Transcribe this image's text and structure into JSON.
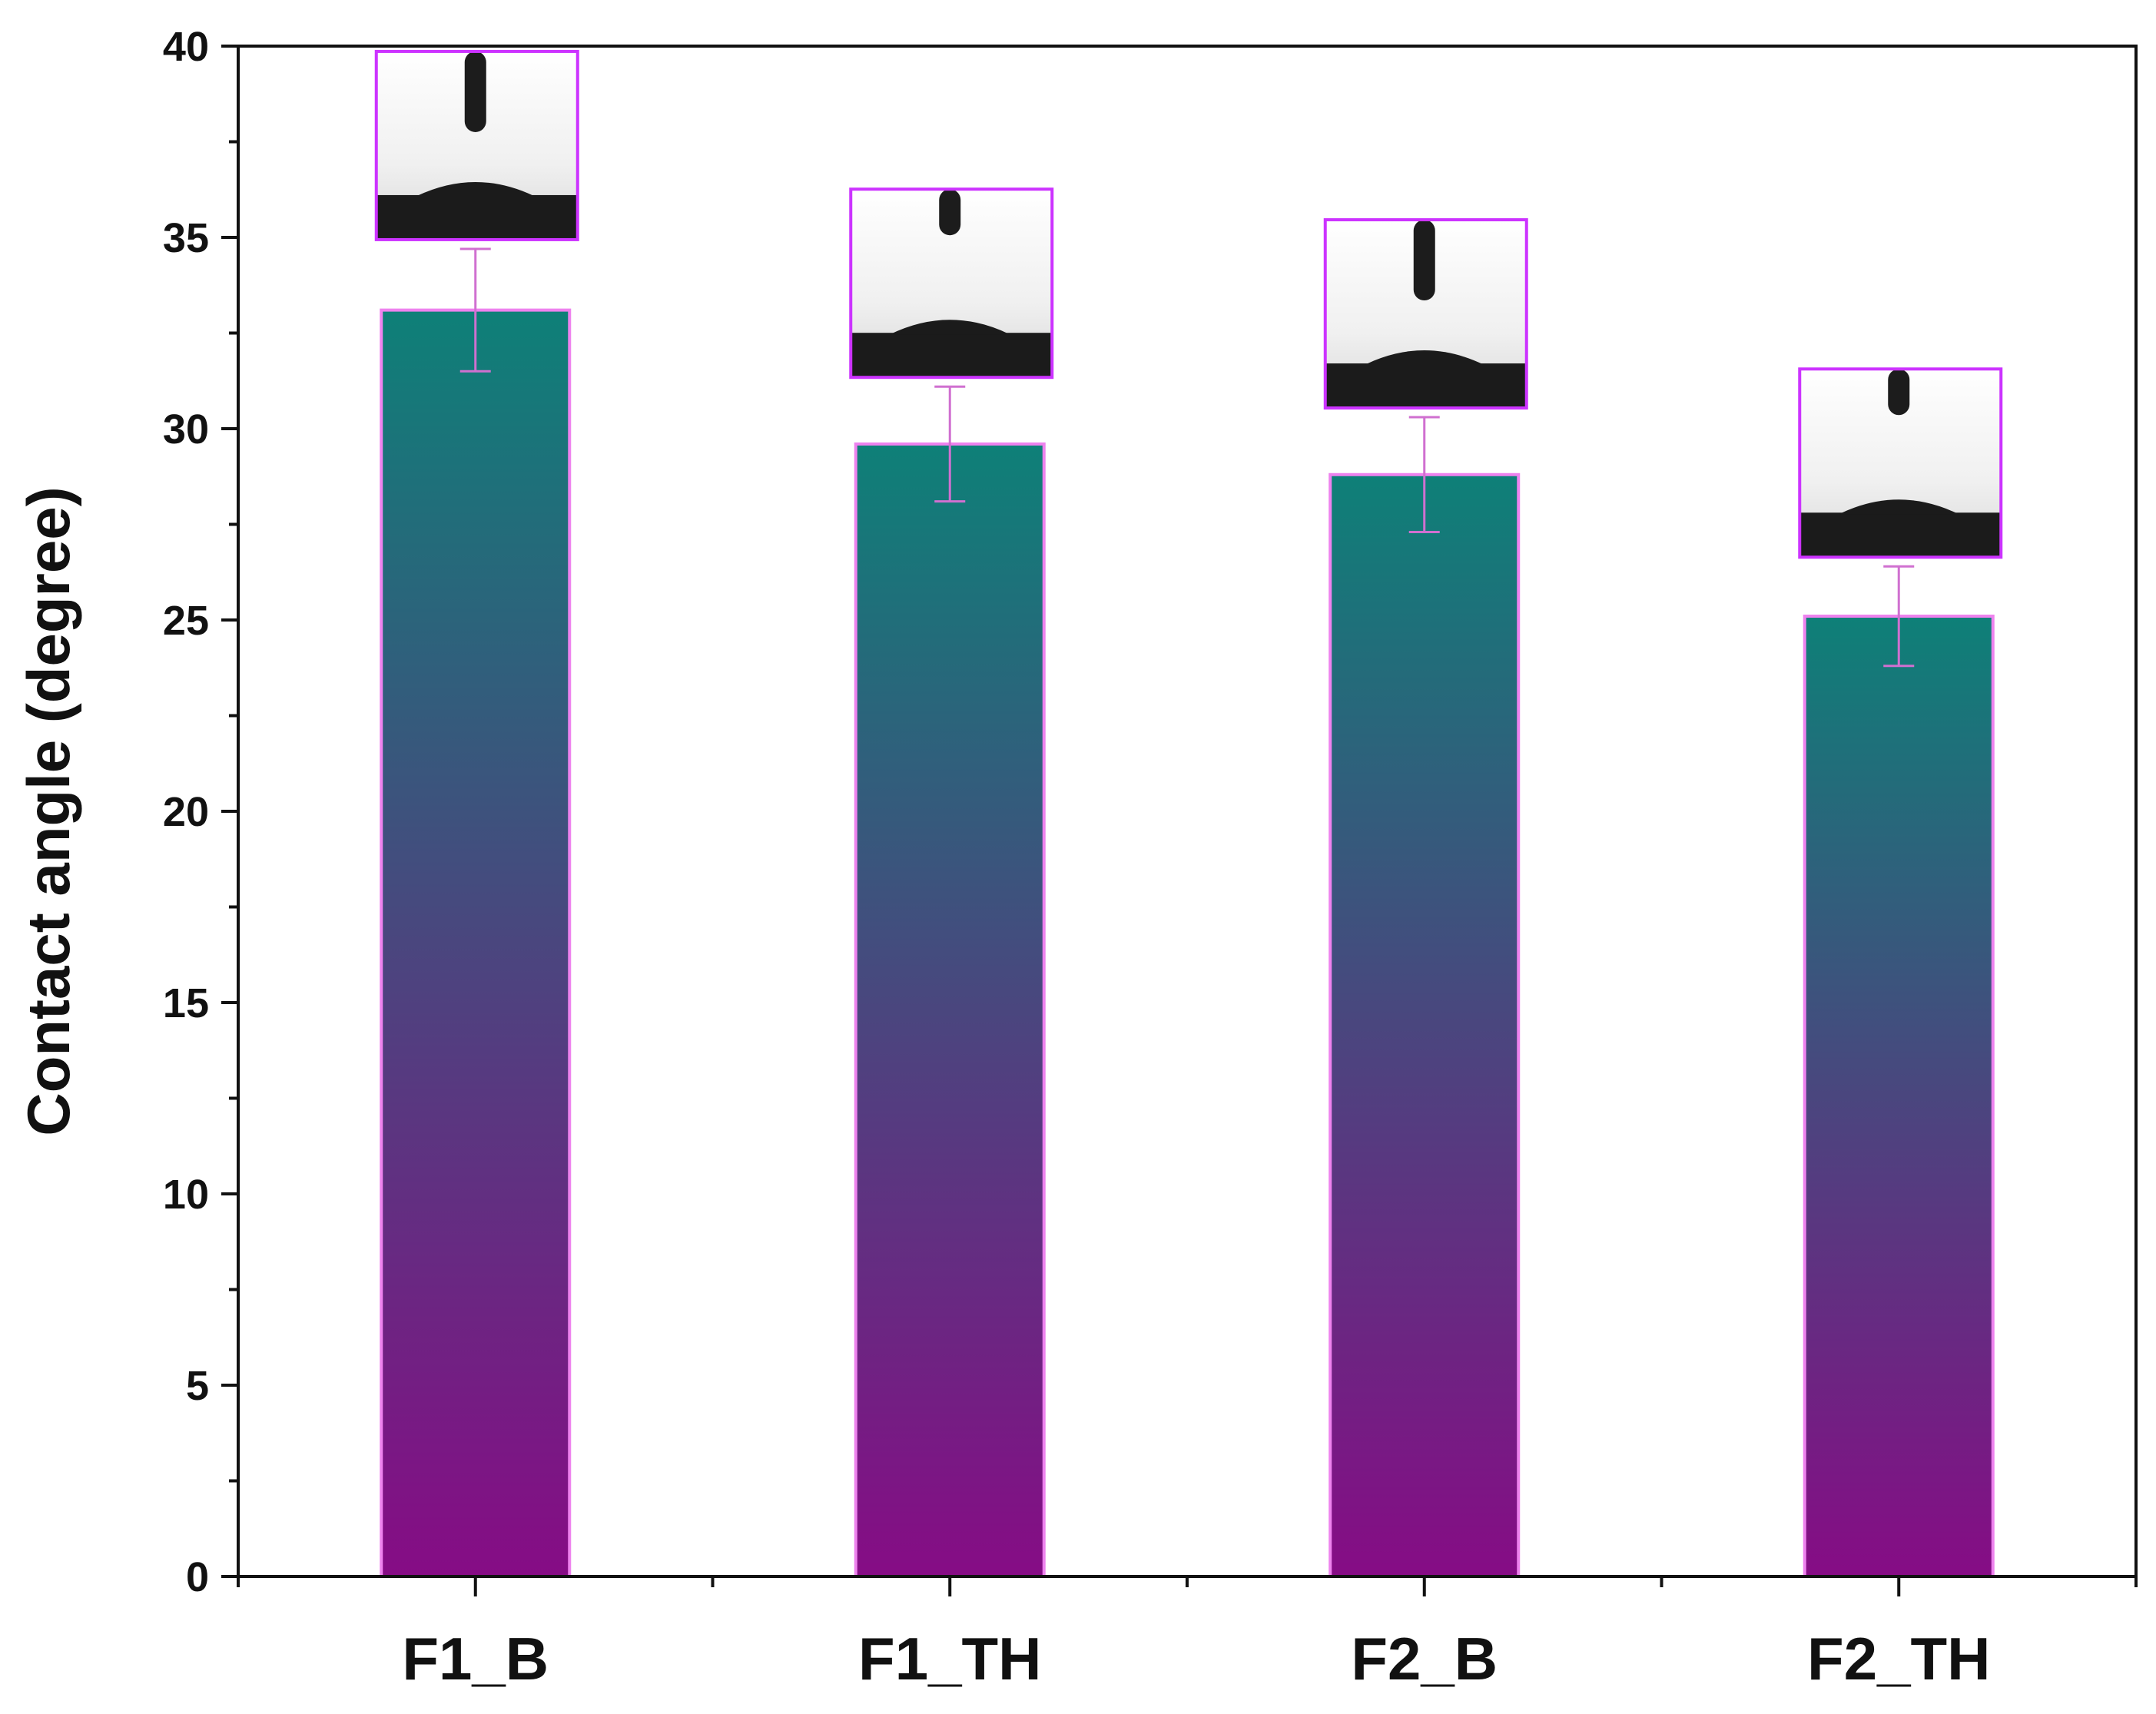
{
  "chart_data": {
    "type": "bar",
    "title": "",
    "xlabel": "",
    "ylabel": "Contact angle (degree)",
    "ylim": [
      0,
      40
    ],
    "yticks": [
      0,
      5,
      10,
      15,
      20,
      25,
      30,
      35,
      40
    ],
    "ytick_labels": [
      "0",
      "5",
      "10",
      "15",
      "20",
      "25",
      "30",
      "35",
      "40"
    ],
    "categories": [
      "F1_B",
      "F1_TH",
      "F2_B",
      "F2_TH"
    ],
    "values": [
      33.1,
      29.6,
      28.8,
      25.1
    ],
    "errors": [
      1.6,
      1.5,
      1.5,
      1.3
    ],
    "grid": false,
    "legend": "none",
    "insets": "droplet photo above each bar",
    "colors": {
      "bar_top": "#0e8078",
      "bar_bottom": "#860c85",
      "bar_edge": "#ee82ee",
      "error_bar": "#d070d0",
      "inset_frame": "#cc33ff",
      "axis": "#111111"
    }
  }
}
